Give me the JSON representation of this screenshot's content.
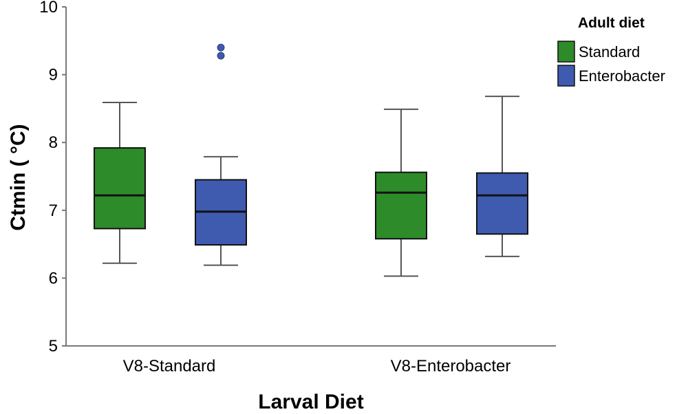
{
  "chart_data": {
    "type": "box",
    "xlabel": "Larval Diet",
    "ylabel": "Ctmin ( °C)",
    "ylim": [
      5,
      10
    ],
    "yticks": [
      "5",
      "6",
      "7",
      "8",
      "9",
      "10"
    ],
    "categories": [
      "V8-Standard",
      "V8-Enterobacter"
    ],
    "legend": {
      "title": "Adult diet",
      "placement": "top-right",
      "entries": [
        "Standard",
        "Enterobacter"
      ]
    },
    "series": [
      {
        "name": "Standard",
        "color": "#2e8b2a",
        "boxes": [
          {
            "category": "V8-Standard",
            "min": 6.22,
            "q1": 6.73,
            "median": 7.22,
            "q3": 7.92,
            "max": 8.59,
            "outliers": []
          },
          {
            "category": "V8-Enterobacter",
            "min": 6.03,
            "q1": 6.58,
            "median": 7.26,
            "q3": 7.56,
            "max": 8.49,
            "outliers": []
          }
        ]
      },
      {
        "name": "Enterobacter",
        "color": "#3f5bb0",
        "boxes": [
          {
            "category": "V8-Standard",
            "min": 6.19,
            "q1": 6.49,
            "median": 6.98,
            "q3": 7.45,
            "max": 7.79,
            "outliers": [
              9.4,
              9.28
            ]
          },
          {
            "category": "V8-Enterobacter",
            "min": 6.32,
            "q1": 6.65,
            "median": 7.22,
            "q3": 7.55,
            "max": 8.68,
            "outliers": []
          }
        ]
      }
    ]
  }
}
